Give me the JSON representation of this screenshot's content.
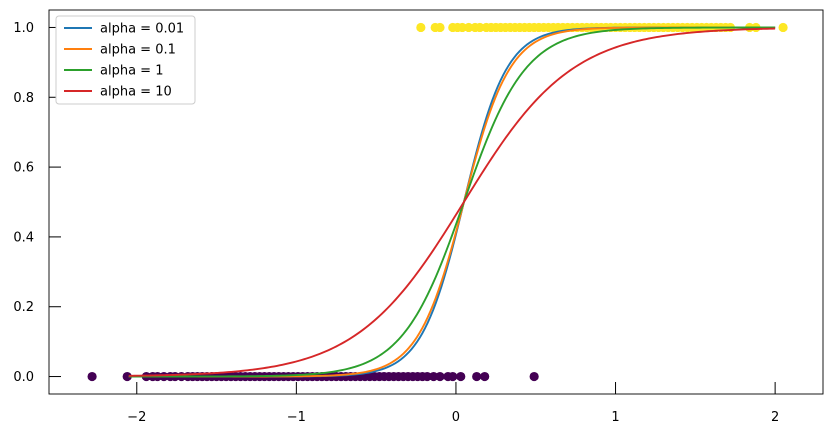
{
  "chart_data": {
    "type": "scatter",
    "title": "",
    "xlabel": "",
    "ylabel": "",
    "xlim": [
      -2.55,
      2.3
    ],
    "ylim": [
      -0.05,
      1.05
    ],
    "grid": false,
    "legend_position": "top-left",
    "x_ticks": [
      -2,
      -1,
      0,
      1,
      2
    ],
    "x_tick_labels": [
      "−2",
      "−1",
      "0",
      "1",
      "2"
    ],
    "y_ticks": [
      0.0,
      0.2,
      0.4,
      0.6,
      0.8,
      1.0
    ],
    "y_tick_labels": [
      "0.0",
      "0.2",
      "0.4",
      "0.6",
      "0.8",
      "1.0"
    ],
    "points": {
      "class_0": {
        "color": "#440154",
        "y": 0,
        "x": [
          -2.28,
          -2.06,
          -1.94,
          -1.9,
          -1.87,
          -1.83,
          -1.79,
          -1.76,
          -1.72,
          -1.68,
          -1.65,
          -1.62,
          -1.59,
          -1.56,
          -1.53,
          -1.5,
          -1.47,
          -1.44,
          -1.41,
          -1.38,
          -1.35,
          -1.32,
          -1.29,
          -1.26,
          -1.23,
          -1.2,
          -1.17,
          -1.14,
          -1.11,
          -1.08,
          -1.05,
          -1.02,
          -0.99,
          -0.96,
          -0.93,
          -0.9,
          -0.87,
          -0.84,
          -0.81,
          -0.78,
          -0.75,
          -0.72,
          -0.69,
          -0.66,
          -0.63,
          -0.6,
          -0.57,
          -0.54,
          -0.51,
          -0.48,
          -0.45,
          -0.42,
          -0.39,
          -0.36,
          -0.33,
          -0.3,
          -0.27,
          -0.24,
          -0.21,
          -0.18,
          -0.14,
          -0.1,
          -0.05,
          -0.02,
          0.03,
          0.13,
          0.18,
          0.49
        ]
      },
      "class_1": {
        "color": "#fde725",
        "y": 1,
        "x": [
          -0.22,
          -0.13,
          -0.1,
          -0.02,
          0.01,
          0.04,
          0.08,
          0.12,
          0.15,
          0.19,
          0.22,
          0.25,
          0.28,
          0.31,
          0.34,
          0.37,
          0.4,
          0.43,
          0.46,
          0.49,
          0.52,
          0.55,
          0.58,
          0.61,
          0.64,
          0.67,
          0.7,
          0.73,
          0.76,
          0.79,
          0.82,
          0.85,
          0.88,
          0.91,
          0.94,
          0.97,
          1.0,
          1.03,
          1.06,
          1.09,
          1.12,
          1.15,
          1.18,
          1.21,
          1.24,
          1.27,
          1.3,
          1.33,
          1.36,
          1.39,
          1.42,
          1.45,
          1.48,
          1.51,
          1.54,
          1.57,
          1.6,
          1.63,
          1.66,
          1.69,
          1.72,
          1.84,
          1.88,
          2.05
        ]
      }
    },
    "series": [
      {
        "name": "alpha = 0.01",
        "color": "#1f77b4",
        "slope": 7.5,
        "midpoint": 0.05
      },
      {
        "name": "alpha = 0.1",
        "color": "#ff7f0e",
        "slope": 7.0,
        "midpoint": 0.05
      },
      {
        "name": "alpha = 1",
        "color": "#2ca02c",
        "slope": 5.2,
        "midpoint": 0.05
      },
      {
        "name": "alpha = 10",
        "color": "#d62728",
        "slope": 2.95,
        "midpoint": 0.05
      }
    ],
    "curve_x_range": [
      -2.05,
      2.0
    ]
  }
}
